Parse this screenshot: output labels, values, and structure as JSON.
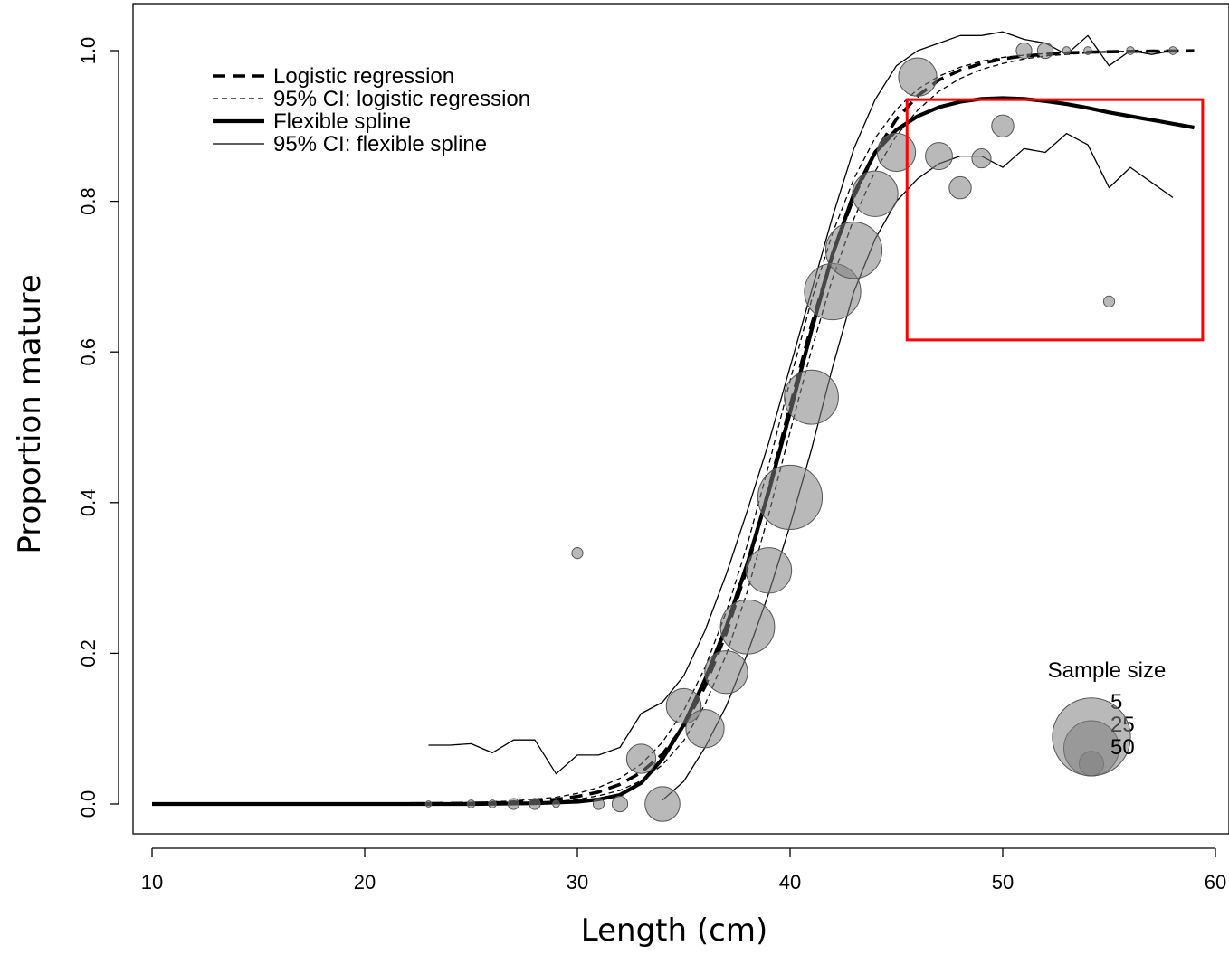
{
  "chart_data": {
    "type": "scatter",
    "title": "",
    "xlabel": "Length (cm)",
    "ylabel": "Proportion mature",
    "xlim": [
      8.5,
      60.5
    ],
    "ylim": [
      -0.04,
      1.06
    ],
    "x_ticks": [
      10,
      20,
      30,
      40,
      50,
      60
    ],
    "x_tick_labels": [
      "10",
      "20",
      "30",
      "40",
      "50",
      "60"
    ],
    "y_ticks": [
      0.0,
      0.2,
      0.4,
      0.6,
      0.8,
      1.0
    ],
    "y_tick_labels": [
      "0.0",
      "0.2",
      "0.4",
      "0.6",
      "0.8",
      "1.0"
    ],
    "grid": false,
    "legend_position": "top-left",
    "legend": [
      {
        "label": "Logistic regression",
        "style": "thick-dashed"
      },
      {
        "label": "95% CI: logistic regression",
        "style": "thin-dashed"
      },
      {
        "label": "Flexible spline",
        "style": "thick-solid"
      },
      {
        "label": "95% CI: flexible spline",
        "style": "thin-solid"
      }
    ],
    "size_legend": {
      "title": "Sample size",
      "entries": [
        {
          "label": "5",
          "n": 5
        },
        {
          "label": "25",
          "n": 25
        },
        {
          "label": "50",
          "n": 50
        }
      ]
    },
    "points": [
      {
        "x": 23,
        "y": 0.0,
        "n": 0.3
      },
      {
        "x": 25,
        "y": 0.0,
        "n": 0.5
      },
      {
        "x": 26,
        "y": 0.0,
        "n": 0.5
      },
      {
        "x": 27,
        "y": 0.0,
        "n": 1
      },
      {
        "x": 28,
        "y": 0.0,
        "n": 1
      },
      {
        "x": 29,
        "y": 0.0,
        "n": 0.4
      },
      {
        "x": 30,
        "y": 0.333,
        "n": 1
      },
      {
        "x": 31,
        "y": 0.0,
        "n": 1
      },
      {
        "x": 32,
        "y": 0.0,
        "n": 2
      },
      {
        "x": 33,
        "y": 0.06,
        "n": 7
      },
      {
        "x": 34,
        "y": 0.0,
        "n": 10
      },
      {
        "x": 35,
        "y": 0.13,
        "n": 10
      },
      {
        "x": 36,
        "y": 0.1,
        "n": 12
      },
      {
        "x": 37,
        "y": 0.175,
        "n": 15
      },
      {
        "x": 38,
        "y": 0.235,
        "n": 24
      },
      {
        "x": 39,
        "y": 0.31,
        "n": 17
      },
      {
        "x": 40,
        "y": 0.407,
        "n": 34
      },
      {
        "x": 41,
        "y": 0.54,
        "n": 24
      },
      {
        "x": 42,
        "y": 0.68,
        "n": 26
      },
      {
        "x": 43,
        "y": 0.735,
        "n": 26
      },
      {
        "x": 44,
        "y": 0.81,
        "n": 17
      },
      {
        "x": 45,
        "y": 0.865,
        "n": 12
      },
      {
        "x": 46,
        "y": 0.965,
        "n": 12
      },
      {
        "x": 47,
        "y": 0.86,
        "n": 6
      },
      {
        "x": 48,
        "y": 0.818,
        "n": 4
      },
      {
        "x": 49,
        "y": 0.857,
        "n": 3
      },
      {
        "x": 50,
        "y": 0.9,
        "n": 4
      },
      {
        "x": 51,
        "y": 1.0,
        "n": 2
      },
      {
        "x": 52,
        "y": 1.0,
        "n": 2
      },
      {
        "x": 53,
        "y": 1.0,
        "n": 0.5
      },
      {
        "x": 54,
        "y": 1.0,
        "n": 0.5
      },
      {
        "x": 55,
        "y": 0.667,
        "n": 1
      },
      {
        "x": 56,
        "y": 1.0,
        "n": 0.5
      },
      {
        "x": 58,
        "y": 1.0,
        "n": 0.5
      }
    ],
    "series": [
      {
        "x": [
          10,
          15,
          20,
          23,
          25,
          27,
          28,
          29,
          30,
          31,
          32,
          33,
          34,
          35,
          36,
          37,
          38,
          39,
          40,
          41,
          42,
          43,
          44,
          45,
          46,
          47,
          48,
          49,
          50,
          51,
          52,
          53,
          54,
          55,
          56,
          57,
          58,
          59
        ],
        "y": [
          0,
          0,
          0,
          0.0005,
          0.001,
          0.002,
          0.004,
          0.006,
          0.01,
          0.016,
          0.026,
          0.042,
          0.066,
          0.103,
          0.156,
          0.227,
          0.315,
          0.418,
          0.528,
          0.635,
          0.729,
          0.806,
          0.865,
          0.909,
          0.94,
          0.961,
          0.974,
          0.983,
          0.989,
          0.993,
          0.995,
          0.997,
          0.998,
          0.9985,
          0.999,
          0.9993,
          0.9995,
          0.9997
        ],
        "style": "thick-dashed"
      },
      {
        "x": [
          23,
          25,
          27,
          29,
          30,
          31,
          32,
          33,
          34,
          35,
          36,
          37,
          38,
          39,
          40,
          41,
          42,
          43,
          44,
          45,
          46,
          47,
          48,
          49,
          50,
          51,
          52,
          53,
          54,
          55,
          56,
          57,
          58
        ],
        "y": [
          0.001,
          0.002,
          0.004,
          0.009,
          0.014,
          0.022,
          0.034,
          0.053,
          0.082,
          0.124,
          0.181,
          0.255,
          0.345,
          0.45,
          0.562,
          0.668,
          0.758,
          0.83,
          0.884,
          0.922,
          0.949,
          0.966,
          0.978,
          0.986,
          0.991,
          0.994,
          0.996,
          0.997,
          0.998,
          0.999,
          0.999,
          0.9995,
          0.9997
        ],
        "style": "thin-dashed"
      },
      {
        "x": [
          23,
          25,
          27,
          29,
          30,
          31,
          32,
          33,
          34,
          35,
          36,
          37,
          38,
          39,
          40,
          41,
          42,
          43,
          44,
          45,
          46,
          47,
          48,
          49,
          50,
          51,
          52,
          53,
          54,
          55,
          56,
          57,
          58
        ],
        "y": [
          0,
          0,
          0.001,
          0.003,
          0.006,
          0.011,
          0.018,
          0.031,
          0.052,
          0.084,
          0.132,
          0.198,
          0.283,
          0.385,
          0.494,
          0.602,
          0.698,
          0.777,
          0.84,
          0.887,
          0.921,
          0.946,
          0.963,
          0.975,
          0.983,
          0.989,
          0.993,
          0.995,
          0.997,
          0.998,
          0.999,
          0.9993,
          0.9995
        ],
        "style": "thin-dashed"
      },
      {
        "x": [
          10,
          15,
          20,
          25,
          28,
          30,
          31,
          32,
          33,
          34,
          35,
          36,
          37,
          38,
          39,
          40,
          41,
          42,
          43,
          44,
          45,
          46,
          47,
          48,
          49,
          50,
          51,
          52,
          53,
          54,
          55,
          56,
          57,
          58,
          59
        ],
        "y": [
          0,
          0,
          0,
          0,
          0.001,
          0.003,
          0.006,
          0.012,
          0.028,
          0.06,
          0.105,
          0.165,
          0.235,
          0.32,
          0.415,
          0.52,
          0.628,
          0.73,
          0.81,
          0.865,
          0.895,
          0.913,
          0.925,
          0.932,
          0.936,
          0.937,
          0.936,
          0.933,
          0.929,
          0.924,
          0.918,
          0.913,
          0.908,
          0.903,
          0.898
        ],
        "style": "thick-solid"
      },
      {
        "x": [
          23,
          24,
          25,
          26,
          27,
          28,
          29,
          30,
          31,
          32,
          33,
          34,
          35,
          36,
          37,
          38,
          39,
          40,
          41,
          42,
          43,
          44,
          45,
          46,
          47,
          48,
          49,
          50,
          51,
          52,
          53,
          54,
          55,
          56,
          57,
          58
        ],
        "y": [
          0.078,
          0.078,
          0.08,
          0.068,
          0.085,
          0.085,
          0.04,
          0.065,
          0.065,
          0.075,
          0.12,
          0.135,
          0.17,
          0.23,
          0.305,
          0.39,
          0.48,
          0.58,
          0.68,
          0.78,
          0.87,
          0.935,
          0.98,
          1.0,
          1.01,
          1.02,
          1.02,
          1.025,
          1.015,
          1.01,
          0.995,
          1.02,
          0.98,
          1.0,
          0.995,
          1.0
        ],
        "style": "thin-solid"
      },
      {
        "x": [
          34,
          35,
          36,
          37,
          38,
          39,
          40,
          41,
          42,
          43,
          44,
          45,
          46,
          47,
          48,
          49,
          50,
          51,
          52,
          53,
          54,
          55,
          56,
          57,
          58
        ],
        "y": [
          0.005,
          0.03,
          0.075,
          0.13,
          0.2,
          0.28,
          0.37,
          0.47,
          0.58,
          0.68,
          0.75,
          0.8,
          0.83,
          0.85,
          0.86,
          0.86,
          0.845,
          0.87,
          0.865,
          0.89,
          0.875,
          0.818,
          0.845,
          0.825,
          0.805
        ],
        "style": "thin-solid"
      }
    ],
    "highlight_box": {
      "x_range": [
        45.5,
        59.4
      ],
      "y_range": [
        0.616,
        0.935
      ],
      "color": "#ff0000"
    }
  }
}
